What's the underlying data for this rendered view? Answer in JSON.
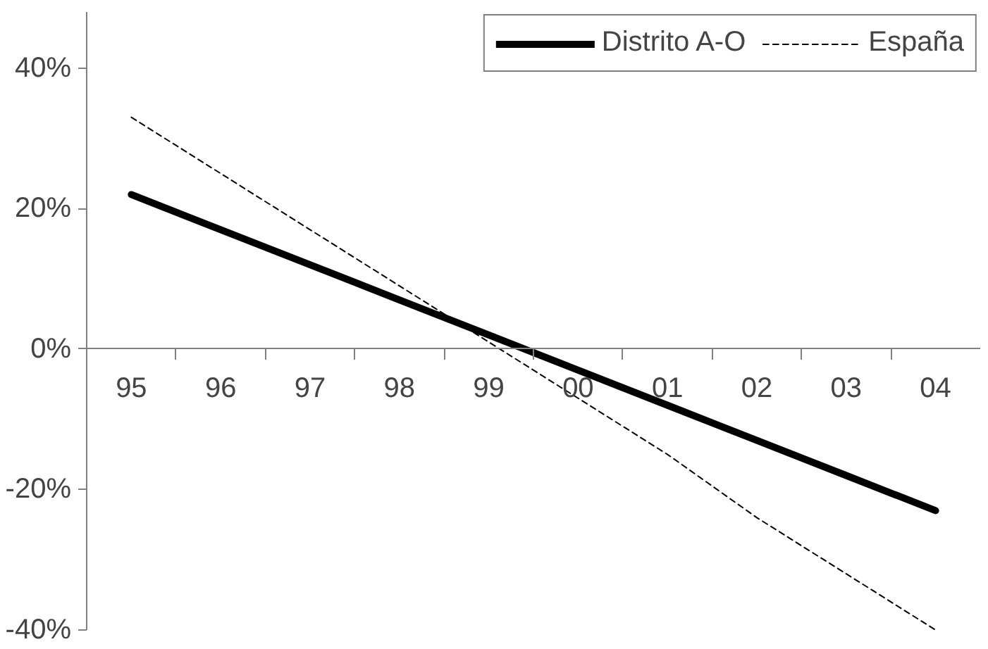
{
  "chart_data": {
    "type": "line",
    "categories": [
      "95",
      "96",
      "97",
      "98",
      "99",
      "00",
      "01",
      "02",
      "03",
      "04"
    ],
    "series": [
      {
        "name": "Distrito A-O",
        "color": "#000000",
        "line_style": "solid",
        "values": [
          22,
          17,
          12,
          7,
          2,
          -3,
          -8,
          -13,
          -18,
          -23
        ]
      },
      {
        "name": "España",
        "color": "#000000",
        "line_style": "dashed",
        "values": [
          33,
          25,
          17,
          9,
          1,
          -7,
          -15,
          -24,
          -32,
          -40
        ]
      }
    ],
    "ylim": [
      -40,
      48
    ],
    "yticks": [
      {
        "value": -40,
        "label": "-40%"
      },
      {
        "value": -20,
        "label": "-20%"
      },
      {
        "value": 0,
        "label": "0%"
      },
      {
        "value": 20,
        "label": "20%"
      },
      {
        "value": 40,
        "label": "40%"
      }
    ],
    "grid": false,
    "legend": "top right",
    "marker": "none"
  }
}
